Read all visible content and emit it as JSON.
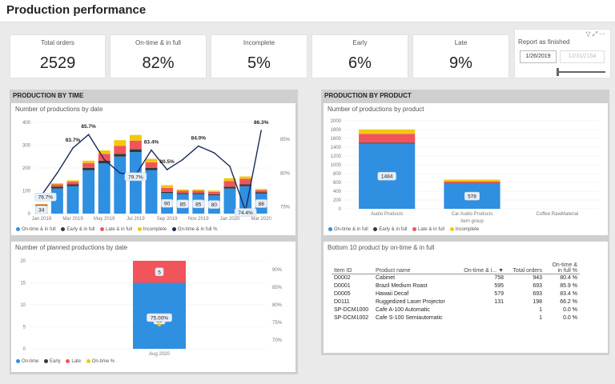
{
  "header": {
    "title": "Production performance"
  },
  "kpis": [
    {
      "label": "Total orders",
      "value": "2529"
    },
    {
      "label": "On-time & in full",
      "value": "82%"
    },
    {
      "label": "Incomplete",
      "value": "5%"
    },
    {
      "label": "Early",
      "value": "6%"
    },
    {
      "label": "Late",
      "value": "9%"
    }
  ],
  "slicer": {
    "title": "Report as finished",
    "start_date": "1/26/2019",
    "end_date": "12/31/2154",
    "icons": [
      "filter-icon",
      "focus-mode-icon",
      "more-options-icon"
    ]
  },
  "colors": {
    "ontime": "#2f8fe0",
    "early": "#2a3d3a",
    "late": "#f1545b",
    "incomplete": "#f2c80f",
    "line": "#1b2a5a"
  },
  "sections": {
    "time": "PRODUCTION BY TIME",
    "product": "PRODUCTION BY PRODUCT"
  },
  "chart_data": [
    {
      "type": "bar",
      "title": "Number of productions by date",
      "x_tick_labels": [
        "Jan 2019",
        "Mar 2019",
        "May 2019",
        "Jul 2019",
        "Sep 2019",
        "Nov 2019",
        "Jan 2020",
        "Mar 2020"
      ],
      "categories": [
        "Jan 2019",
        "Feb 2019",
        "Mar 2019",
        "Apr 2019",
        "May 2019",
        "Jun 2019",
        "Jul 2019",
        "Aug 2019",
        "Sep 2019",
        "Oct 2019",
        "Nov 2019",
        "Dec 2019",
        "Jan 2020",
        "Feb 2020",
        "Mar 2020"
      ],
      "ylim": [
        0,
        400
      ],
      "y_ticks": [
        "0",
        "100",
        "200",
        "300",
        "400"
      ],
      "y2_ticks": [
        "75%",
        "80%",
        "85%"
      ],
      "y2lim": [
        74,
        87.5
      ],
      "stacked": true,
      "series": [
        {
          "name": "On-time & in full",
          "values": [
            34,
            110,
            120,
            190,
            220,
            250,
            270,
            190,
            90,
            85,
            85,
            80,
            110,
            120,
            88
          ]
        },
        {
          "name": "Early & in full",
          "values": [
            3,
            8,
            8,
            10,
            12,
            12,
            12,
            10,
            5,
            5,
            5,
            5,
            8,
            8,
            5
          ]
        },
        {
          "name": "Late & in full",
          "values": [
            3,
            10,
            12,
            22,
            30,
            35,
            38,
            25,
            18,
            10,
            10,
            10,
            25,
            25,
            10
          ]
        },
        {
          "name": "Incomplete",
          "values": [
            2,
            5,
            6,
            10,
            15,
            25,
            25,
            15,
            12,
            6,
            6,
            6,
            12,
            10,
            5
          ]
        }
      ],
      "line": {
        "name": "On-time & in full %",
        "values": [
          76.7,
          80.0,
          83.7,
          85.7,
          82.0,
          80.0,
          79.7,
          83.4,
          80.5,
          82.0,
          84.0,
          83.0,
          81.0,
          74.4,
          86.3
        ]
      },
      "data_labels": [
        {
          "category": "Jan 2019",
          "series": "On-time & in full",
          "text": "34"
        },
        {
          "category": "Sep 2019",
          "series": "On-time & in full",
          "text": "90"
        },
        {
          "category": "Oct 2019",
          "series": "On-time & in full",
          "text": "85"
        },
        {
          "category": "Nov 2019",
          "series": "On-time & in full",
          "text": "85"
        },
        {
          "category": "Dec 2019",
          "series": "On-time & in full",
          "text": "80"
        },
        {
          "category": "Mar 2020",
          "series": "On-time & in full",
          "text": "88"
        }
      ],
      "line_labels": [
        {
          "category": "Jan 2019",
          "text": "76.7%"
        },
        {
          "category": "Mar 2019",
          "text": "83.7%"
        },
        {
          "category": "Apr 2019",
          "text": "85.7%"
        },
        {
          "category": "Jul 2019",
          "text": "79.7%"
        },
        {
          "category": "Aug 2019",
          "text": "83.4%"
        },
        {
          "category": "Sep 2019",
          "text": "80.5%"
        },
        {
          "category": "Nov 2019",
          "text": "84.0%"
        },
        {
          "category": "Feb 2020",
          "text": "74.4%"
        },
        {
          "category": "Mar 2020",
          "text": "86.3%"
        }
      ],
      "legend": [
        "On-time & in full",
        "Early & in full",
        "Late & in full",
        "Incomplete",
        "On-time & in full %"
      ]
    },
    {
      "type": "bar",
      "title": "Number of planned productions by date",
      "categories": [
        "Aug 2020"
      ],
      "ylim": [
        0,
        20
      ],
      "y_ticks": [
        "0",
        "5",
        "10",
        "15",
        "20"
      ],
      "y2_ticks": [
        "70%",
        "75%",
        "80%",
        "85%",
        "90%"
      ],
      "y2lim": [
        67.5,
        92.5
      ],
      "series": [
        {
          "name": "On-time",
          "values": [
            15
          ]
        },
        {
          "name": "Early",
          "values": [
            0
          ]
        },
        {
          "name": "Late",
          "values": [
            5
          ]
        }
      ],
      "line": {
        "name": "On-time %",
        "values": [
          75.0
        ]
      },
      "data_labels": [
        {
          "series": "On-time",
          "text": "15"
        },
        {
          "series": "Late",
          "text": "5"
        },
        {
          "series": "On-time %",
          "text": "75.00%"
        }
      ],
      "legend": [
        "On-time",
        "Early",
        "Late",
        "On-time %"
      ]
    },
    {
      "type": "bar",
      "title": "Number of productions by product",
      "xlabel": "Item group",
      "categories": [
        "Audio Products",
        "Car Audio Products",
        "Coffee RawMaterial"
      ],
      "ylim": [
        0,
        2000
      ],
      "y_ticks": [
        "0",
        "200",
        "400",
        "600",
        "800",
        "1000",
        "1200",
        "1400",
        "1600",
        "1800",
        "2000"
      ],
      "stacked": true,
      "series": [
        {
          "name": "On-time & in full",
          "values": [
            1484,
            578,
            0
          ]
        },
        {
          "name": "Early & in full",
          "values": [
            20,
            10,
            0
          ]
        },
        {
          "name": "Late & in full",
          "values": [
            200,
            35,
            0
          ]
        },
        {
          "name": "Incomplete",
          "values": [
            100,
            40,
            0
          ]
        }
      ],
      "data_labels": [
        {
          "category": "Audio Products",
          "series": "On-time & in full",
          "text": "1484"
        },
        {
          "category": "Car Audio Products",
          "series": "On-time & in full",
          "text": "578"
        }
      ],
      "legend": [
        "On-time & in full",
        "Early & in full",
        "Late & in full",
        "Incomplete"
      ]
    }
  ],
  "table": {
    "title": "Bottom 10 product by on-time & in full",
    "columns": [
      "Item ID",
      "Product name",
      "On-time & i...",
      "Total orders",
      "On-time & in full %"
    ],
    "sort_indicator": "▼",
    "rows": [
      [
        "D0002",
        "Cabinet",
        "758",
        "943",
        "80.4 %"
      ],
      [
        "D0001",
        "Brazil Medium Roast",
        "595",
        "693",
        "85.9 %"
      ],
      [
        "D0005",
        "Hawaii Decaf",
        "579",
        "693",
        "83.4 %"
      ],
      [
        "D0111",
        "Ruggedized Laser Projector",
        "131",
        "198",
        "66.2 %"
      ],
      [
        "SP-DCM1000",
        "Cafe A-100 Automatic",
        "",
        "1",
        "0.0 %"
      ],
      [
        "SP-DCM1002",
        "Cafe S-100 Semiautomatic",
        "",
        "1",
        "0.0 %"
      ]
    ]
  }
}
